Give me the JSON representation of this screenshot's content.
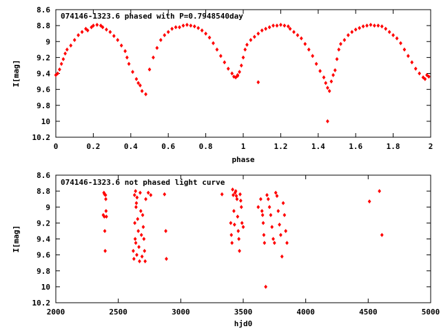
{
  "chart_data": [
    {
      "type": "scatter",
      "title": "074146-1323.6 phased with P=0.7948540day",
      "xlabel": "phase",
      "ylabel": "I[mag]",
      "xlim": [
        0,
        2
      ],
      "ylim": [
        8.6,
        10.2
      ],
      "y_inverted": true,
      "xticks": [
        "0",
        "0.2",
        "0.4",
        "0.6",
        "0.8",
        "1",
        "1.2",
        "1.4",
        "1.6",
        "1.8",
        "2"
      ],
      "yticks": [
        "8.6",
        "8.8",
        "9",
        "9.2",
        "9.4",
        "9.6",
        "9.8",
        "10",
        "10.2"
      ],
      "marker_color": "#ff0000",
      "marker": "diamond",
      "grid": false,
      "series": [
        {
          "x": [
            0.0,
            0.01,
            0.02,
            0.03,
            0.04,
            0.05,
            0.06,
            0.08,
            0.1,
            0.12,
            0.14,
            0.16,
            0.17,
            0.19,
            0.2,
            0.22,
            0.24,
            0.25,
            0.27,
            0.29,
            0.31,
            0.33,
            0.35,
            0.37,
            0.38,
            0.39,
            0.41,
            0.43,
            0.44,
            0.45,
            0.46,
            0.48,
            0.5,
            0.52,
            0.54,
            0.56,
            0.58,
            0.6,
            0.62,
            0.64,
            0.66,
            0.68,
            0.7,
            0.72,
            0.74,
            0.76,
            0.78,
            0.8,
            0.82,
            0.84,
            0.86,
            0.88,
            0.9,
            0.92,
            0.94,
            0.95,
            0.96,
            0.97,
            0.98,
            0.99,
            1.0,
            1.01,
            1.02,
            1.04,
            1.06,
            1.08,
            1.1,
            1.12,
            1.14,
            1.16,
            1.18,
            1.2,
            1.22,
            1.24,
            1.25,
            1.27,
            1.29,
            1.31,
            1.33,
            1.35,
            1.37,
            1.39,
            1.41,
            1.43,
            1.44,
            1.45,
            1.46,
            1.47,
            1.48,
            1.49,
            1.5,
            1.51,
            1.52,
            1.54,
            1.56,
            1.58,
            1.6,
            1.62,
            1.64,
            1.66,
            1.68,
            1.7,
            1.72,
            1.74,
            1.76,
            1.78,
            1.8,
            1.82,
            1.84,
            1.86,
            1.88,
            1.9,
            1.92,
            1.94,
            1.96,
            1.97,
            1.98,
            1.99,
            1.45,
            1.08,
            0.97
          ],
          "y": [
            9.42,
            9.4,
            9.35,
            9.28,
            9.22,
            9.15,
            9.1,
            9.05,
            8.98,
            8.92,
            8.88,
            8.84,
            8.86,
            8.82,
            8.8,
            8.79,
            8.8,
            8.82,
            8.85,
            8.88,
            8.93,
            8.98,
            9.05,
            9.12,
            9.2,
            9.28,
            9.38,
            9.47,
            9.52,
            9.55,
            9.62,
            9.66,
            9.35,
            9.2,
            9.08,
            8.98,
            8.92,
            8.88,
            8.84,
            8.82,
            8.82,
            8.8,
            8.79,
            8.8,
            8.81,
            8.83,
            8.86,
            8.9,
            8.95,
            9.02,
            9.1,
            9.18,
            9.26,
            9.34,
            9.4,
            9.44,
            9.45,
            9.42,
            9.38,
            9.3,
            9.2,
            9.1,
            9.04,
            8.98,
            8.94,
            8.9,
            8.86,
            8.84,
            8.82,
            8.8,
            8.8,
            8.79,
            8.8,
            8.81,
            8.84,
            8.88,
            8.92,
            8.96,
            9.03,
            9.1,
            9.18,
            9.28,
            9.37,
            9.45,
            9.52,
            9.58,
            9.62,
            9.5,
            9.42,
            9.36,
            9.22,
            9.1,
            9.03,
            8.98,
            8.92,
            8.88,
            8.85,
            8.83,
            8.81,
            8.8,
            8.79,
            8.8,
            8.8,
            8.81,
            8.84,
            8.88,
            8.92,
            8.96,
            9.02,
            9.1,
            9.18,
            9.26,
            9.34,
            9.4,
            9.45,
            9.47,
            9.42,
            9.44,
            10.0,
            9.51,
            9.43
          ]
        }
      ]
    },
    {
      "type": "scatter",
      "title": "074146-1323.6 not phased light curve",
      "xlabel": "hjd0",
      "ylabel": "I[mag]",
      "xlim": [
        2000,
        5000
      ],
      "ylim": [
        8.6,
        10.2
      ],
      "y_inverted": true,
      "xticks": [
        "2000",
        "2500",
        "3000",
        "3500",
        "4000",
        "4500",
        "5000"
      ],
      "yticks": [
        "8.6",
        "8.8",
        "9",
        "9.2",
        "9.4",
        "9.6",
        "9.8",
        "10",
        "10.2"
      ],
      "marker_color": "#ff0000",
      "marker": "diamond",
      "grid": false,
      "series": [
        {
          "x": [
            2380,
            2385,
            2388,
            2390,
            2392,
            2395,
            2398,
            2400,
            2402,
            2405,
            2620,
            2625,
            2630,
            2632,
            2635,
            2638,
            2640,
            2642,
            2645,
            2648,
            2650,
            2655,
            2660,
            2665,
            2670,
            2675,
            2680,
            2685,
            2690,
            2695,
            2700,
            2705,
            2710,
            2715,
            2720,
            2740,
            2760,
            2870,
            2880,
            2885,
            3330,
            3400,
            3405,
            3410,
            3415,
            3420,
            3425,
            3430,
            3435,
            3440,
            3445,
            3450,
            3455,
            3460,
            3465,
            3470,
            3475,
            3480,
            3485,
            3490,
            3500,
            3620,
            3640,
            3650,
            3655,
            3660,
            3665,
            3670,
            3680,
            3690,
            3700,
            3710,
            3720,
            3730,
            3740,
            3750,
            3760,
            3770,
            3780,
            3790,
            3800,
            3810,
            3820,
            3830,
            3840,
            3850,
            4510,
            4590,
            4610
          ],
          "y": [
            9.1,
            8.82,
            9.12,
            8.84,
            9.3,
            9.55,
            8.85,
            8.9,
            9.05,
            9.12,
            9.55,
            9.65,
            8.85,
            9.2,
            9.4,
            8.8,
            9.45,
            9.0,
            8.95,
            9.6,
            8.88,
            9.15,
            9.3,
            9.5,
            9.68,
            8.82,
            9.05,
            9.35,
            9.62,
            9.1,
            9.25,
            9.4,
            9.55,
            9.68,
            8.9,
            8.82,
            8.85,
            8.84,
            9.3,
            9.65,
            8.84,
            9.2,
            9.35,
            9.45,
            8.78,
            8.85,
            9.05,
            9.22,
            8.82,
            8.8,
            8.86,
            8.9,
            9.12,
            9.3,
            9.4,
            9.55,
            8.84,
            8.92,
            9.0,
            9.2,
            9.25,
            9.0,
            8.9,
            9.05,
            9.1,
            9.2,
            9.35,
            9.45,
            10.0,
            8.85,
            8.9,
            9.0,
            9.1,
            9.25,
            9.4,
            9.45,
            8.82,
            8.86,
            9.05,
            9.22,
            9.35,
            9.62,
            8.95,
            9.1,
            9.3,
            9.45,
            8.93,
            8.8,
            9.35
          ]
        }
      ]
    }
  ]
}
